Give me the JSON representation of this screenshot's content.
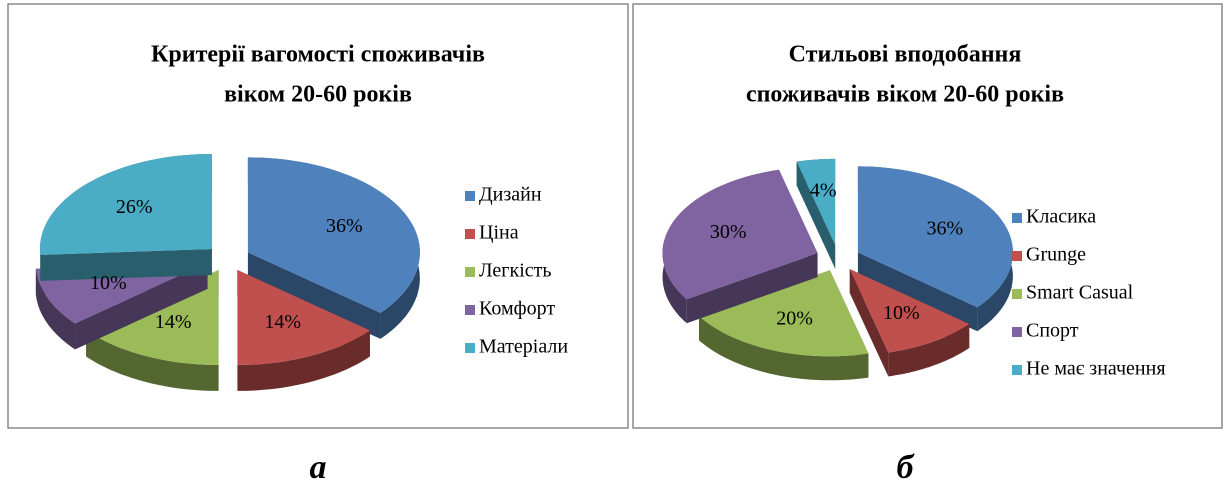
{
  "chart_data": [
    {
      "type": "pie",
      "title": [
        "Критерії вагомості споживачів",
        "віком 20-60 років"
      ],
      "categories": [
        "Дизайн",
        "Ціна",
        "Легкість",
        "Комфорт",
        "Матеріали"
      ],
      "values": [
        36,
        14,
        14,
        10,
        26
      ],
      "value_labels": [
        "36%",
        "14%",
        "14%",
        "10%",
        "26%"
      ],
      "colors": [
        "#4f81bd",
        "#c0504d",
        "#9bbb59",
        "#8064a2",
        "#4bacc6"
      ],
      "legend": "right"
    },
    {
      "type": "pie",
      "title": [
        "Стильові вподобання",
        "споживачів віком 20-60 років"
      ],
      "categories": [
        "Класика",
        "Grunge",
        "Smart Casual",
        "Спорт",
        "Не має значення"
      ],
      "values": [
        36,
        10,
        20,
        30,
        4
      ],
      "value_labels": [
        "36%",
        "10%",
        "20%",
        "30%",
        "4%"
      ],
      "colors": [
        "#4f81bd",
        "#c0504d",
        "#9bbb59",
        "#8064a2",
        "#4bacc6"
      ],
      "legend": "right"
    }
  ],
  "captions": [
    "а",
    "б"
  ]
}
